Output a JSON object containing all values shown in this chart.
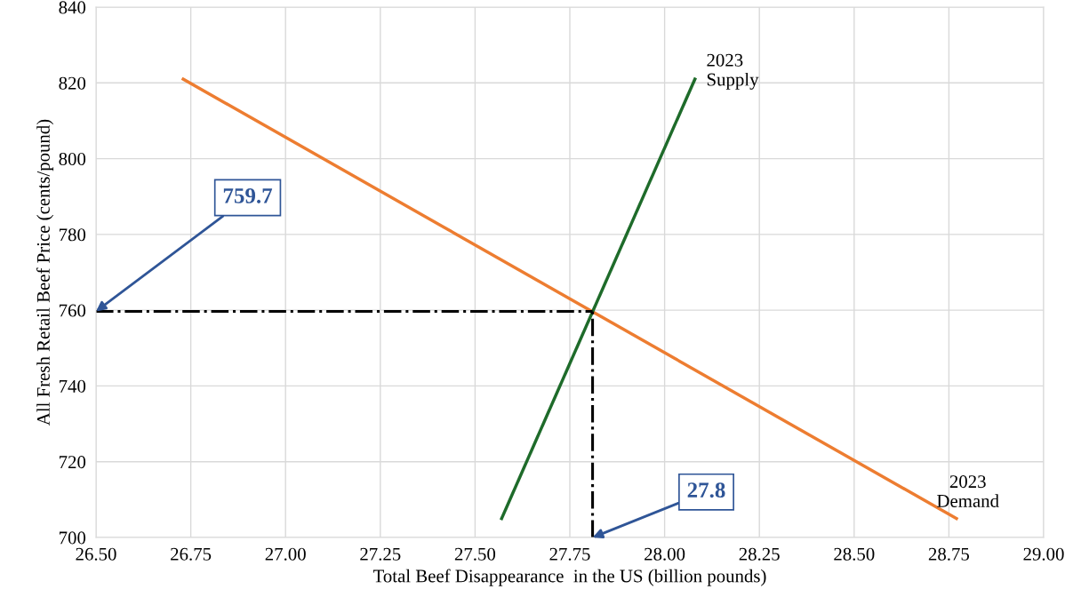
{
  "chart_data": {
    "type": "line",
    "xlabel": "Total Beef Disappearance  in the US (billion pounds)",
    "ylabel": "All Fresh Retail Beef Price (cents/pound)",
    "series": [
      {
        "name": "2023\nDemand",
        "color": "#ed7d31",
        "x": [
          26.73,
          28.77
        ],
        "values": [
          821,
          705
        ],
        "line_style": "solid"
      },
      {
        "name": "2023\nSupply",
        "color": "#1e6b2a",
        "x": [
          27.57,
          28.08
        ],
        "values": [
          705,
          821
        ],
        "line_style": "solid"
      },
      {
        "color": "#000000",
        "x": [
          26.5,
          27.81
        ],
        "values": [
          759.7,
          759.7
        ],
        "line_style": "dashdot"
      },
      {
        "color": "#000000",
        "x": [
          27.81,
          27.81
        ],
        "values": [
          700,
          759.7
        ],
        "line_style": "dashdot"
      }
    ],
    "annotations": [
      {
        "text": "759.7",
        "x": 26.5,
        "y": 759.7
      },
      {
        "text": "27.8",
        "x": 27.81,
        "y": 700
      }
    ],
    "xlim": [
      26.5,
      29.0
    ],
    "xticks": [
      {
        "value": 26.5,
        "label": "26.50"
      },
      {
        "value": 26.75,
        "label": "26.75"
      },
      {
        "value": 27.0,
        "label": "27.00"
      },
      {
        "value": 27.25,
        "label": "27.25"
      },
      {
        "value": 27.5,
        "label": "27.50"
      },
      {
        "value": 27.75,
        "label": "27.75"
      },
      {
        "value": 28.0,
        "label": "28.00"
      },
      {
        "value": 28.25,
        "label": "28.25"
      },
      {
        "value": 28.5,
        "label": "28.50"
      },
      {
        "value": 28.75,
        "label": "28.75"
      },
      {
        "value": 29.0,
        "label": "29.00"
      }
    ],
    "ylim": [
      700,
      840
    ],
    "yticks": [
      700,
      720,
      740,
      760,
      780,
      800,
      820,
      840
    ],
    "grid": true,
    "legend": false
  }
}
